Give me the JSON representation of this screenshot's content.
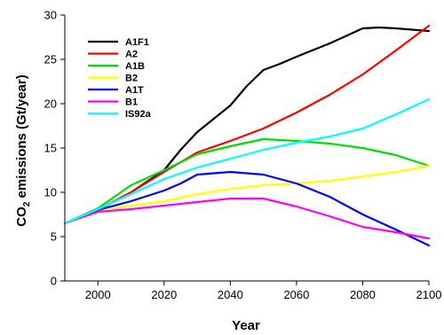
{
  "chart_data": {
    "type": "line",
    "title": "",
    "xlabel": "Year",
    "ylabel_main": "CO",
    "ylabel_sub": "2",
    "ylabel_rest": " emissions (Gt/year)",
    "xlim": [
      1990,
      2100
    ],
    "ylim": [
      0,
      30
    ],
    "xticks": [
      2000,
      2020,
      2040,
      2060,
      2080,
      2100
    ],
    "yticks": [
      0,
      5,
      10,
      15,
      20,
      25,
      30
    ],
    "grid": false,
    "legend_position": "top-left",
    "series": [
      {
        "name": "A1F1",
        "color": "#000000",
        "x": [
          1990,
          2000,
          2010,
          2020,
          2025,
          2030,
          2040,
          2045,
          2050,
          2055,
          2060,
          2070,
          2080,
          2085,
          2090,
          2100
        ],
        "y": [
          6.5,
          8.0,
          10.0,
          12.5,
          14.8,
          16.8,
          19.8,
          22.0,
          23.8,
          24.5,
          25.3,
          26.8,
          28.5,
          28.6,
          28.5,
          28.2
        ]
      },
      {
        "name": "A2",
        "color": "#ff0000",
        "x": [
          1990,
          2000,
          2010,
          2020,
          2030,
          2040,
          2050,
          2060,
          2070,
          2080,
          2090,
          2100
        ],
        "y": [
          6.5,
          8.0,
          10.0,
          12.3,
          14.5,
          15.8,
          17.2,
          19.0,
          21.0,
          23.3,
          26.0,
          28.8
        ]
      },
      {
        "name": "A1B",
        "color": "#00dd00",
        "x": [
          1990,
          2000,
          2010,
          2020,
          2030,
          2040,
          2050,
          2060,
          2070,
          2080,
          2090,
          2100
        ],
        "y": [
          6.5,
          8.2,
          10.8,
          12.5,
          14.3,
          15.2,
          16.0,
          15.8,
          15.5,
          15.0,
          14.2,
          13.0
        ]
      },
      {
        "name": "B2",
        "color": "#ffff00",
        "x": [
          1990,
          2000,
          2010,
          2020,
          2030,
          2040,
          2050,
          2060,
          2070,
          2080,
          2090,
          2100
        ],
        "y": [
          6.5,
          8.0,
          8.5,
          9.0,
          9.8,
          10.4,
          10.8,
          11.0,
          11.3,
          11.8,
          12.3,
          13.0
        ]
      },
      {
        "name": "A1T",
        "color": "#0000ff",
        "x": [
          1990,
          2000,
          2010,
          2020,
          2025,
          2030,
          2040,
          2050,
          2060,
          2070,
          2080,
          2090,
          2100
        ],
        "y": [
          6.5,
          8.0,
          9.0,
          10.2,
          11.0,
          12.0,
          12.3,
          12.0,
          11.0,
          9.5,
          7.5,
          5.8,
          4.0
        ]
      },
      {
        "name": "B1",
        "color": "#ff00ff",
        "x": [
          1990,
          2000,
          2010,
          2020,
          2030,
          2040,
          2050,
          2060,
          2070,
          2080,
          2090,
          2100
        ],
        "y": [
          6.5,
          7.8,
          8.1,
          8.5,
          8.9,
          9.3,
          9.3,
          8.4,
          7.3,
          6.1,
          5.5,
          4.8
        ]
      },
      {
        "name": "IS92a",
        "color": "#00ffff",
        "x": [
          1990,
          2000,
          2010,
          2020,
          2030,
          2040,
          2050,
          2060,
          2070,
          2080,
          2090,
          2100
        ],
        "y": [
          6.5,
          8.1,
          9.8,
          11.5,
          12.8,
          13.8,
          14.8,
          15.6,
          16.3,
          17.2,
          18.8,
          20.5
        ]
      }
    ]
  }
}
